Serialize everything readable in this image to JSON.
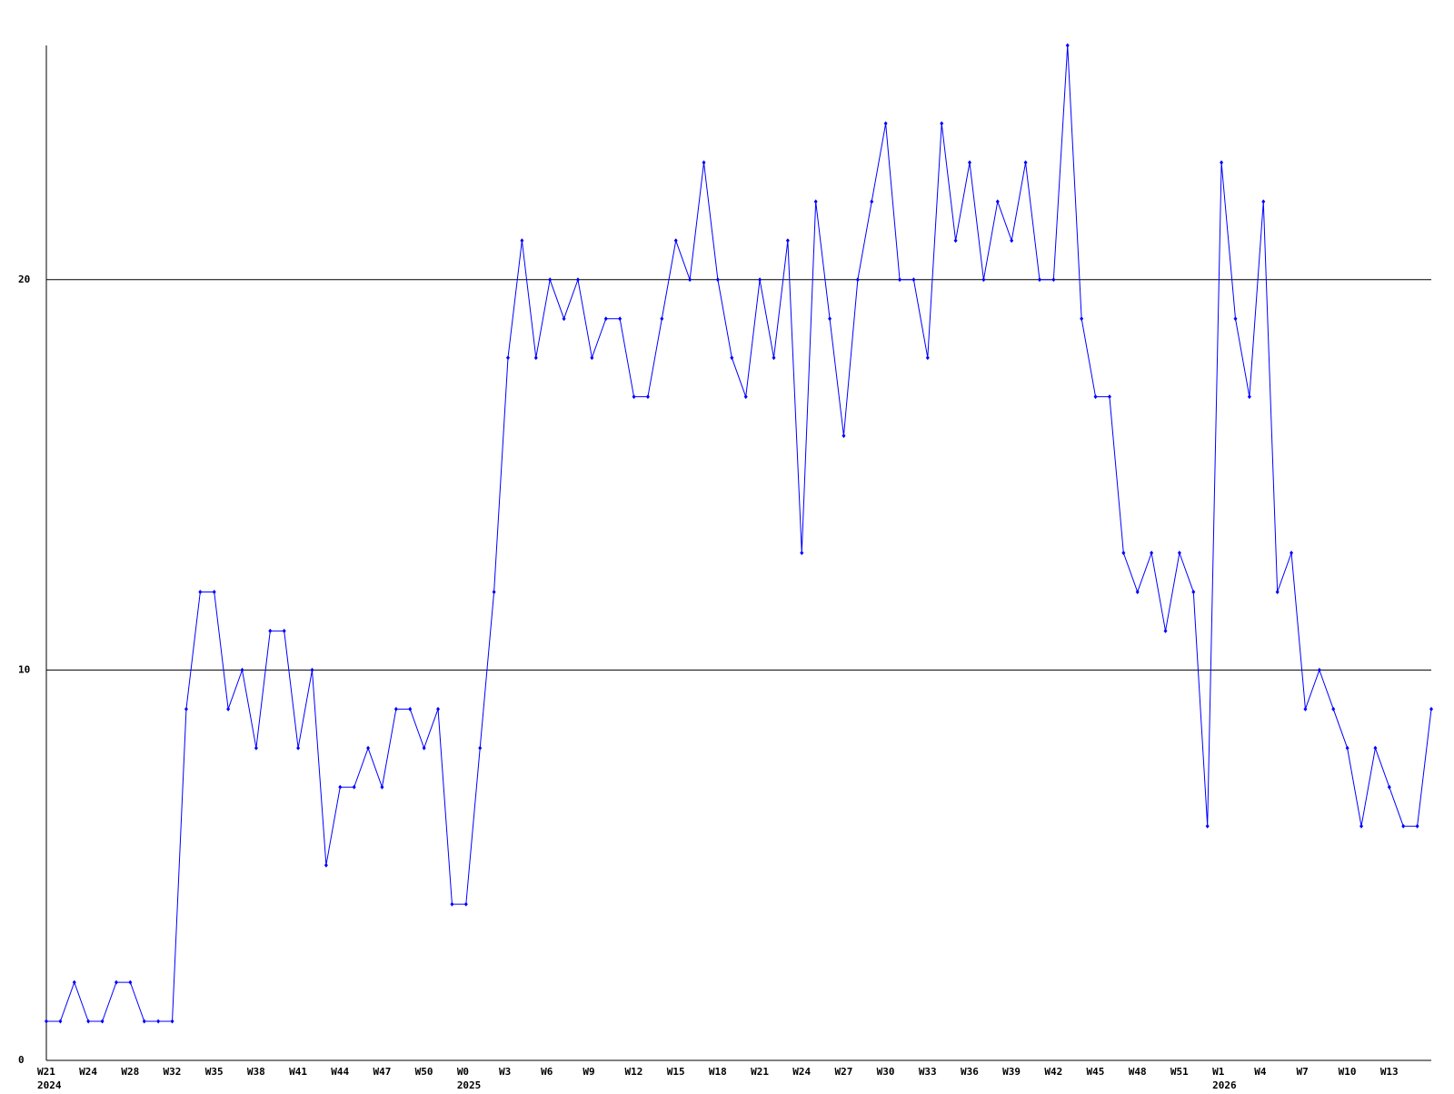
{
  "chart_data": {
    "type": "line",
    "categories": [
      "W21",
      null,
      null,
      "W24",
      null,
      null,
      "W28",
      null,
      null,
      "W32",
      null,
      null,
      "W35",
      null,
      null,
      "W38",
      null,
      null,
      "W41",
      null,
      null,
      "W44",
      null,
      null,
      "W47",
      null,
      null,
      "W50",
      null,
      null,
      "W0",
      null,
      null,
      "W3",
      null,
      null,
      "W6",
      null,
      null,
      "W9",
      null,
      null,
      "W12",
      null,
      null,
      "W15",
      null,
      null,
      "W18",
      null,
      null,
      "W21",
      null,
      null,
      "W24",
      null,
      null,
      "W27",
      null,
      null,
      "W30",
      null,
      null,
      "W33",
      null,
      null,
      "W36",
      null,
      null,
      "W39",
      null,
      null,
      "W42",
      null,
      null,
      "W45",
      null,
      null,
      "W48",
      null,
      null,
      "W51",
      null,
      null,
      "W1",
      null,
      null,
      "W4",
      null,
      null,
      "W7",
      null,
      null,
      "W10",
      null,
      null,
      "W13",
      null,
      null,
      null
    ],
    "x_years": [
      "2024",
      null,
      null,
      null,
      null,
      null,
      null,
      null,
      null,
      null,
      null,
      null,
      null,
      null,
      null,
      null,
      null,
      null,
      null,
      null,
      null,
      null,
      null,
      null,
      null,
      null,
      null,
      null,
      null,
      null,
      "2025",
      null,
      null,
      null,
      null,
      null,
      null,
      null,
      null,
      null,
      null,
      null,
      null,
      null,
      null,
      null,
      null,
      null,
      null,
      null,
      null,
      null,
      null,
      null,
      null,
      null,
      null,
      null,
      null,
      null,
      null,
      null,
      null,
      null,
      null,
      null,
      null,
      null,
      null,
      null,
      null,
      null,
      null,
      null,
      null,
      null,
      null,
      null,
      null,
      null,
      null,
      null,
      null,
      null,
      "2026",
      null,
      null,
      null,
      null,
      null,
      null,
      null,
      null,
      null,
      null,
      null,
      null,
      null,
      null,
      null
    ],
    "values": [
      1,
      1,
      2,
      1,
      1,
      2,
      2,
      1,
      1,
      1,
      9,
      12,
      12,
      9,
      10,
      8,
      11,
      11,
      8,
      10,
      5,
      7,
      7,
      8,
      7,
      9,
      9,
      8,
      9,
      4,
      4,
      8,
      12,
      18,
      21,
      18,
      20,
      19,
      20,
      18,
      19,
      19,
      17,
      17,
      19,
      21,
      20,
      23,
      20,
      18,
      17,
      20,
      18,
      21,
      13,
      22,
      19,
      16,
      20,
      22,
      24,
      20,
      20,
      18,
      24,
      21,
      23,
      20,
      22,
      21,
      23,
      20,
      20,
      26,
      19,
      17,
      17,
      13,
      12,
      13,
      11,
      13,
      12,
      6,
      23,
      19,
      17,
      22,
      12,
      13,
      9,
      10,
      9,
      8,
      6,
      8,
      7,
      6,
      6,
      9
    ],
    "color": "#0000ff",
    "ylim": [
      0,
      26
    ],
    "yticks": [
      0,
      10,
      20
    ],
    "grid": true
  }
}
